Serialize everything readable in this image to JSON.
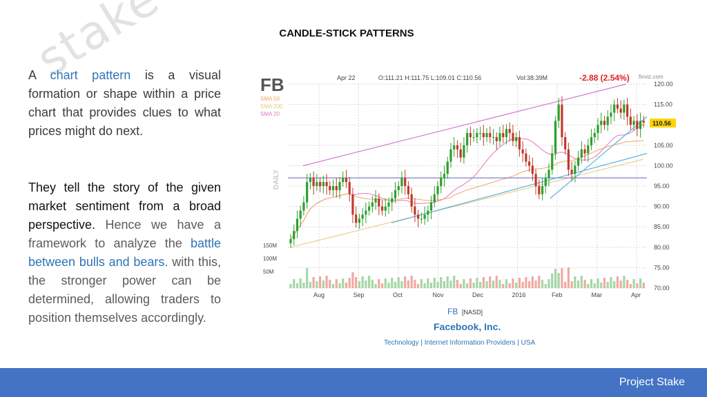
{
  "slide": {
    "title": "CANDLE-STICK PATTERNS",
    "watermark": "stake",
    "footer": "Project Stake"
  },
  "paragraph1": {
    "pre": "A",
    "highlight": "chart pattern",
    "rest": "is a visual formation or shape within a price chart that provides clues to what prices might do next."
  },
  "paragraph2": {
    "part1": "They tell the story of the given market sentiment from a broad perspective.",
    "part2": "Hence we have a framework to analyze the",
    "highlight1": "battle between bulls and bears.",
    "part3": "with this, the stronger power can be determined, allowing traders to position themselves accordingly."
  },
  "chart_data": {
    "type": "candlestick",
    "ticker": "FB",
    "header": {
      "date": "Apr 22",
      "ohlc": "O:111.21 H:111.75 L:109.01 C:110.56",
      "volume": "Vol:38.39M",
      "change": "-2.88 (2.54%)",
      "source": "finviz.com"
    },
    "legend": [
      "SMA 50",
      "SMA 200",
      "SMA 20"
    ],
    "legend_colors": [
      "#f4a460",
      "#e8c77a",
      "#e377c2"
    ],
    "side_label": "DAILY",
    "y_ticks": [
      "120.00",
      "115.00",
      "110.00",
      "105.00",
      "100.00",
      "95.00",
      "90.00",
      "85.00",
      "80.00",
      "75.00",
      "70.00"
    ],
    "ylim": [
      70,
      120
    ],
    "last_price": "110.56",
    "volume_ticks": [
      "150M",
      "100M",
      "50M"
    ],
    "x_ticks": [
      "Aug",
      "Sep",
      "Oct",
      "Nov",
      "Dec",
      "2016",
      "Feb",
      "Mar",
      "Apr"
    ],
    "footer": {
      "ticker": "FB",
      "exchange": "[NASD]",
      "company": "Facebook, Inc.",
      "sector": "Technology | Internet Information Providers | USA"
    },
    "colors": {
      "up": "#2ca02c",
      "down": "#c0392b",
      "grid": "#d8d8d8",
      "vol_up": "#a5d6a7",
      "vol_down": "#f1a9a0"
    },
    "closes": [
      82,
      84,
      87,
      89,
      91,
      96,
      97,
      95,
      96,
      95,
      96,
      95,
      94,
      95,
      94,
      96,
      97,
      96,
      93,
      88,
      86,
      87,
      88,
      89,
      90,
      91,
      92,
      90,
      89,
      90,
      91,
      92,
      94,
      95,
      97,
      95,
      93,
      90,
      88,
      87,
      87,
      88,
      89,
      91,
      93,
      95,
      97,
      98,
      101,
      104,
      105,
      104,
      102,
      105,
      108,
      107,
      107,
      108,
      108,
      107,
      108,
      107,
      107,
      106,
      108,
      107,
      109,
      108,
      106,
      107,
      104,
      103,
      101,
      100,
      98,
      95,
      93,
      95,
      97,
      99,
      103,
      111,
      115,
      107,
      104,
      99,
      98,
      100,
      102,
      104,
      103,
      105,
      107,
      108,
      110,
      111,
      110,
      112,
      113,
      115,
      114,
      113,
      115,
      112,
      110,
      111,
      109,
      111,
      110.56
    ]
  }
}
